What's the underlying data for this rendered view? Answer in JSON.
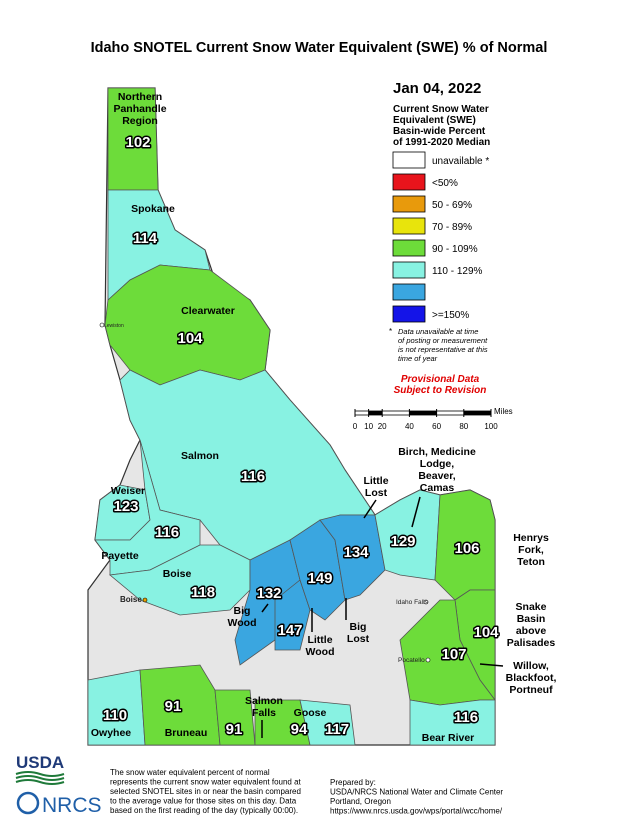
{
  "title": "Idaho SNOTEL Current Snow Water Equivalent (SWE) % of Normal",
  "date": "Jan 04, 2022",
  "legend": {
    "title": [
      "Current Snow Water",
      "Equivalent (SWE)",
      "Basin-wide Percent",
      "of 1991-2020 Median"
    ],
    "items": [
      {
        "label": "unavailable *",
        "color": "#ffffff"
      },
      {
        "label": "<50%",
        "color": "#e8141c"
      },
      {
        "label": "50 - 69%",
        "color": "#e89a0c"
      },
      {
        "label": "70 - 89%",
        "color": "#e8e40c"
      },
      {
        "label": "90 - 109%",
        "color": "#6ddc3a"
      },
      {
        "label": "110 - 129%",
        "color": "#88f2e2"
      },
      {
        "label": ">=150%",
        "color": "#1414e8"
      }
    ],
    "note_marker": "*",
    "note": [
      "Data unavailable at time",
      "of posting or measurement",
      "is not representative at this",
      "time of year"
    ]
  },
  "provisional": [
    "Provisional Data",
    "Subject to Revision"
  ],
  "scale": {
    "unit": "Miles",
    "ticks": [
      0,
      10,
      20,
      40,
      60,
      80,
      100
    ]
  },
  "cities": [
    "Lewiston",
    "Boise",
    "Idaho Falls",
    "Pocatello"
  ],
  "basins": [
    {
      "name": [
        "Northern",
        "Panhandle",
        "Region"
      ],
      "value": 102,
      "color": "#6ddc3a"
    },
    {
      "name": [
        "Spokane"
      ],
      "value": 114,
      "color": "#88f2e2"
    },
    {
      "name": [
        "Clearwater"
      ],
      "value": 104,
      "color": "#6ddc3a"
    },
    {
      "name": [
        "Salmon"
      ],
      "value": 116,
      "color": "#88f2e2"
    },
    {
      "name": [
        "Weiser"
      ],
      "value": 123,
      "color": "#88f2e2"
    },
    {
      "name": [
        "Payette"
      ],
      "value": 116,
      "color": "#88f2e2"
    },
    {
      "name": [
        "Boise"
      ],
      "value": 118,
      "color": "#88f2e2"
    },
    {
      "name": [
        "Big",
        "Wood"
      ],
      "value": 132,
      "color": "#3aa6e0"
    },
    {
      "name": [
        "Little",
        "Wood"
      ],
      "value": 147,
      "color": "#3aa6e0"
    },
    {
      "name": [
        "Big",
        "Lost"
      ],
      "value": 149,
      "color": "#3aa6e0"
    },
    {
      "name": [
        "Little",
        "Lost"
      ],
      "value": 134,
      "color": "#3aa6e0"
    },
    {
      "name": [
        "Birch, Medicine",
        "Lodge,",
        "Beaver,",
        "Camas"
      ],
      "value": 129,
      "color": "#88f2e2"
    },
    {
      "name": [
        "Henrys",
        "Fork,",
        "Teton"
      ],
      "value": 106,
      "color": "#6ddc3a"
    },
    {
      "name": [
        "Snake",
        "Basin",
        "above",
        "Palisades"
      ],
      "value": 104,
      "color": "#6ddc3a"
    },
    {
      "name": [
        "Willow,",
        "Blackfoot,",
        "Portneuf"
      ],
      "value": 107,
      "color": "#6ddc3a"
    },
    {
      "name": [
        "Owyhee"
      ],
      "value": 110,
      "color": "#88f2e2"
    },
    {
      "name": [
        "Bruneau"
      ],
      "value": 91,
      "color": "#6ddc3a"
    },
    {
      "name": [
        "Salmon",
        "Falls"
      ],
      "value": 91,
      "color": "#6ddc3a"
    },
    {
      "name": [
        "Goose"
      ],
      "value": 94,
      "color": "#6ddc3a"
    },
    {
      "name": null,
      "value": 117,
      "color": "#88f2e2"
    },
    {
      "name": [
        "Bear River"
      ],
      "value": 116,
      "color": "#88f2e2"
    }
  ],
  "footer": {
    "logo_usda": "USDA",
    "logo_nrcs": "NRCS",
    "note": [
      "The snow water equivalent percent of normal",
      "represents the current snow water equivalent found at",
      "selected SNOTEL sites in or near the basin compared",
      "to the average value for those sites on this day. Data",
      "based on the first reading of the day (typically 00:00)."
    ],
    "prepared": [
      "Prepared by:",
      "USDA/NRCS National Water and Climate Center",
      "Portland, Oregon",
      "https://www.nrcs.usda.gov/wps/portal/wcc/home/"
    ]
  }
}
